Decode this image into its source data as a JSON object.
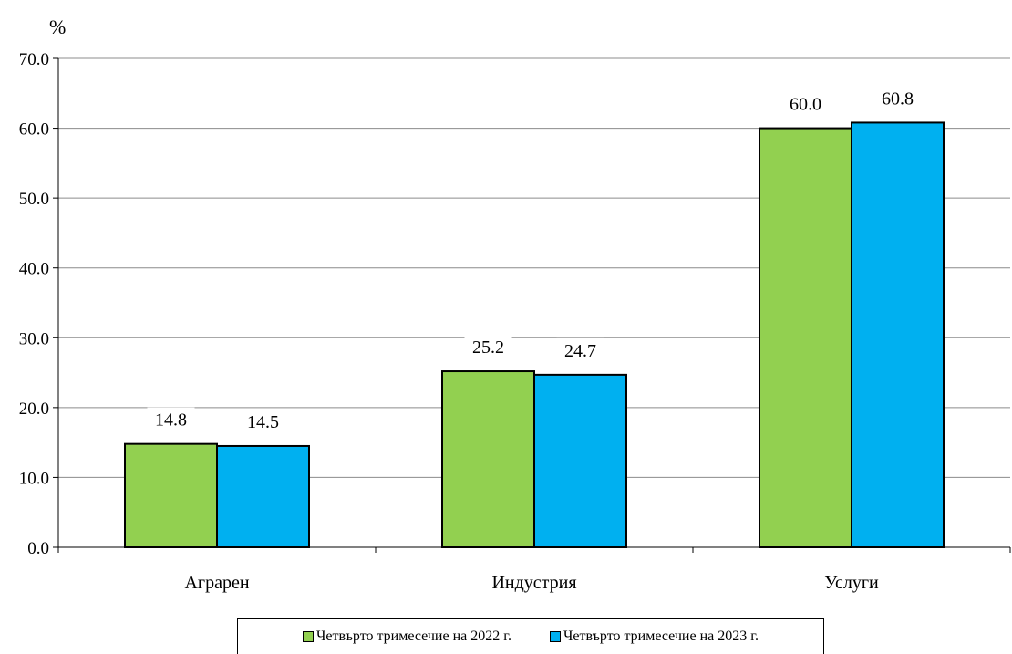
{
  "chart_data": {
    "type": "bar",
    "ylabel": "%",
    "ylim": [
      0,
      70
    ],
    "yticks": [
      "0.0",
      "10.0",
      "20.0",
      "30.0",
      "40.0",
      "50.0",
      "60.0",
      "70.0"
    ],
    "categories": [
      "Аграрен",
      "Индустрия",
      "Услуги"
    ],
    "series": [
      {
        "name": "Четвърто тримесечие на 2022 г.",
        "color": "#92d050",
        "values": [
          14.8,
          25.2,
          60.0
        ],
        "labels": [
          "14.8",
          "25.2",
          "60.0"
        ]
      },
      {
        "name": "Четвърто тримесечие на 2023 г.",
        "color": "#00b0f0",
        "values": [
          14.5,
          24.7,
          60.8
        ],
        "labels": [
          "14.5",
          "24.7",
          "60.8"
        ]
      }
    ],
    "grid": true,
    "legend_position": "bottom"
  }
}
